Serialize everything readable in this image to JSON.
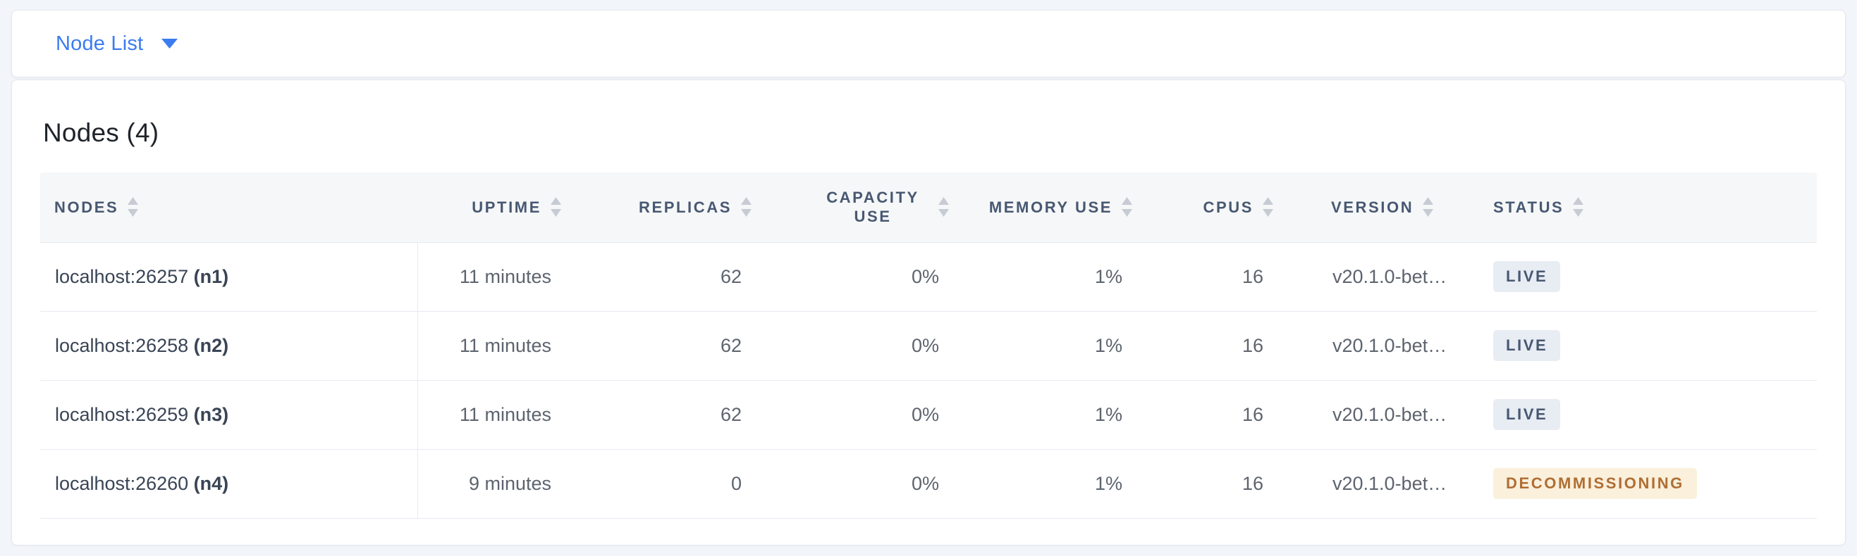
{
  "dropdown": {
    "label": "Node List"
  },
  "panel": {
    "title": "Nodes (4)",
    "table": {
      "columns": [
        {
          "key": "node",
          "label": "NODES",
          "align": "left"
        },
        {
          "key": "uptime",
          "label": "UPTIME",
          "align": "right"
        },
        {
          "key": "replicas",
          "label": "REPLICAS",
          "align": "right"
        },
        {
          "key": "capacity_use",
          "label": "CAPACITY USE",
          "align": "right"
        },
        {
          "key": "memory_use",
          "label": "MEMORY USE",
          "align": "right"
        },
        {
          "key": "cpus",
          "label": "CPUS",
          "align": "right"
        },
        {
          "key": "version",
          "label": "VERSION",
          "align": "left"
        },
        {
          "key": "status",
          "label": "STATUS",
          "align": "left"
        }
      ],
      "rows": [
        {
          "node": "localhost:26257",
          "node_id": "(n1)",
          "uptime": "11 minutes",
          "replicas": "62",
          "capacity_use": "0%",
          "memory_use": "1%",
          "cpus": "16",
          "version": "v20.1.0-bet…",
          "status": "LIVE",
          "status_type": "live"
        },
        {
          "node": "localhost:26258",
          "node_id": "(n2)",
          "uptime": "11 minutes",
          "replicas": "62",
          "capacity_use": "0%",
          "memory_use": "1%",
          "cpus": "16",
          "version": "v20.1.0-bet…",
          "status": "LIVE",
          "status_type": "live"
        },
        {
          "node": "localhost:26259",
          "node_id": "(n3)",
          "uptime": "11 minutes",
          "replicas": "62",
          "capacity_use": "0%",
          "memory_use": "1%",
          "cpus": "16",
          "version": "v20.1.0-bet…",
          "status": "LIVE",
          "status_type": "live"
        },
        {
          "node": "localhost:26260",
          "node_id": "(n4)",
          "uptime": "9 minutes",
          "replicas": "0",
          "capacity_use": "0%",
          "memory_use": "1%",
          "cpus": "16",
          "version": "v20.1.0-bet…",
          "status": "DECOMMISSIONING",
          "status_type": "decommissioning"
        }
      ]
    }
  },
  "colors": {
    "accent_blue": "#3b7cf0",
    "header_text": "#475872",
    "badge_live_bg": "#e8ecf3",
    "badge_live_text": "#475872",
    "badge_decommissioning_bg": "#faf0dc",
    "badge_decommissioning_text": "#b06e33"
  }
}
